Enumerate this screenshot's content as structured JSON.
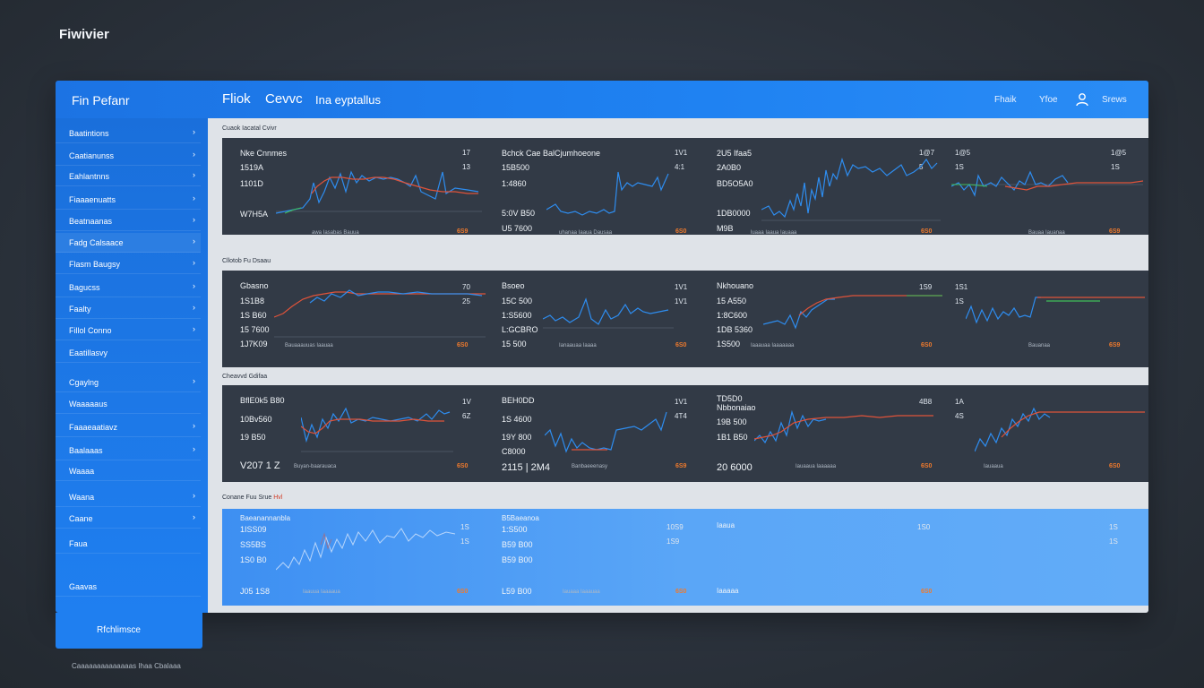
{
  "brand": "Fiwivier",
  "topbar": {
    "app_title": "Fin Pefanr",
    "tabs": [
      "Fliok",
      "Cevvc",
      "Ina eyptallus"
    ],
    "actions": [
      "Fhaik",
      "Yfoe",
      "Srews"
    ],
    "user_icon": "user-icon"
  },
  "sidebar": {
    "items": [
      {
        "label": "Baatintions"
      },
      {
        "label": "Caatianunss"
      },
      {
        "label": "Eahlantnns"
      },
      {
        "label": "Fiaaaenuatts"
      },
      {
        "label": "Beatnaanas"
      },
      {
        "label": "Fadg Calsaace"
      },
      {
        "label": "Flasm Baugsy"
      },
      {
        "label": "Bagucss"
      },
      {
        "label": "Faalty"
      },
      {
        "label": "Fillol Conno"
      },
      {
        "label": "Eaatillasvy"
      },
      {
        "label": "Cgaylng"
      },
      {
        "label": "Waaaaaus"
      },
      {
        "label": "Faaaeaatiavz"
      },
      {
        "label": "Baalaaas"
      },
      {
        "label": "Waaaa"
      },
      {
        "label": "Waana"
      },
      {
        "label": "Caane"
      },
      {
        "label": "Faua"
      },
      {
        "label": "Gaavas"
      }
    ]
  },
  "sections": [
    {
      "label": "Cuaok Iacatal Cvivr"
    },
    {
      "label": "Cllotob Fu Dsaau"
    },
    {
      "label": "Cheavvd Gdifaa"
    },
    {
      "label": "Conane Fuu Srue",
      "label_hot": "Hvl"
    }
  ],
  "rows": [
    {
      "panels": [
        {
          "lines": [
            "Nke Cnnmes",
            "1519A",
            "1101D",
            "W7H5A"
          ],
          "right": [
            "17",
            "13"
          ],
          "tick": "awa Iasabas Bauua",
          "badge": "6S9"
        },
        {
          "lines": [
            "Bchck Cae BalCjumhoeone",
            "15B500",
            "1:4860",
            "5:0V B50",
            "U5 7600"
          ],
          "right": [
            "1V1",
            "4:1"
          ],
          "tick": "uhanaa Iaaua Dausaa",
          "badge": "6S0"
        },
        {
          "lines": [
            "2U5 Ifaa5",
            "2A0B0",
            "BD5O5A0",
            "1DB0000",
            "M9B"
          ],
          "right": [
            "1@7",
            "5"
          ],
          "tick": "luaaa Iaaua Iauaaa",
          "badge": "6S0"
        },
        {
          "lines": [
            ""
          ],
          "right": [
            "1@5",
            "1S"
          ],
          "tick": "Bauaa Iauanaa",
          "badge": "6S9"
        }
      ]
    },
    {
      "panels": [
        {
          "lines": [
            "Gbasno",
            "1S1B8",
            "1S B60",
            "15 7600",
            "1J7K09"
          ],
          "right": [
            "70",
            "25"
          ],
          "tick": "Bauaaauuas Iaauaa",
          "badge": "6S0"
        },
        {
          "lines": [
            "Bsoeo",
            "15C 500",
            "1:S5600",
            "L:GCBRO",
            "15 500"
          ],
          "right": [
            "1V1",
            "1V1"
          ],
          "tick": "Ianaauaa Iaaaa",
          "badge": "6S0"
        },
        {
          "lines": [
            "Nkhouano",
            "15 A550",
            "1:8C600",
            "1DB 5360",
            "1S500"
          ],
          "right": [
            "1S9",
            ""
          ],
          "tick": "Iaaauaa Iaaaaaaa",
          "badge": "6S0"
        },
        {
          "lines": [
            ""
          ],
          "right": [
            "1S1",
            "1S"
          ],
          "tick": "Bauanaa",
          "badge": "6S9"
        }
      ]
    },
    {
      "panels": [
        {
          "lines": [
            "BflE0k5 B80",
            "10Bv560",
            "19 B50",
            "V207 1 Z"
          ],
          "right": [
            "1V",
            "6Z"
          ],
          "tick": "Buyan-baarauaca",
          "badge": "6S0"
        },
        {
          "lines": [
            "BEH0DD",
            "1S 4600",
            "19Y 800",
            "C8000",
            "2115 | 2M4"
          ],
          "right": [
            "1V1",
            "4T4"
          ],
          "tick": "Banbaeeenasy",
          "badge": "6S9"
        },
        {
          "lines": [
            "TD5D0",
            "Nbbonaiao",
            "19B 500",
            "1B1 B50",
            "20 6000"
          ],
          "right": [
            "4B8",
            ""
          ],
          "tick": "Iauaaua Iaaaaaa",
          "badge": "6S0"
        },
        {
          "lines": [
            ""
          ],
          "right": [
            "1A",
            "4S"
          ],
          "tick": "Iauaaua",
          "badge": "6S0"
        }
      ]
    },
    {
      "panels": [
        {
          "lines": [
            "Baeanannanbla",
            "1ISS09",
            "SS5BS",
            "1S0 B0",
            "J05 1S8"
          ],
          "right": [
            "1S",
            "1S"
          ],
          "tick": "Iaauua Iaaaaua",
          "badge": "6S0"
        },
        {
          "lines": [
            "B5Baeanoa",
            "1:S500",
            "B59 B00",
            "B59 B00",
            "L59 B00"
          ],
          "right": [
            "10S9",
            "1S9"
          ],
          "tick": "Iauaaa Iaaauaa",
          "badge": "6S0"
        },
        {
          "lines": [
            "Iaaua",
            "",
            "",
            "",
            "Iaaaaa"
          ],
          "right": [
            "1S0",
            ""
          ],
          "tick": "",
          "badge": "6S0"
        },
        {
          "lines": [
            ""
          ],
          "right": [
            "1S",
            "1S"
          ],
          "tick": "",
          "badge": ""
        }
      ]
    }
  ],
  "footer": {
    "button_label": "Rfchlimsce",
    "note": "Caaaaaaaaaaaaaas  Ihaa Cbalaaa"
  },
  "colors": {
    "accent": "#1f7ff0",
    "panel_bg": "#323a46",
    "line_blue": "#2e8df0",
    "line_red": "#e0533a",
    "line_green": "#3fbf5a",
    "badge_orange": "#f07a2c"
  }
}
